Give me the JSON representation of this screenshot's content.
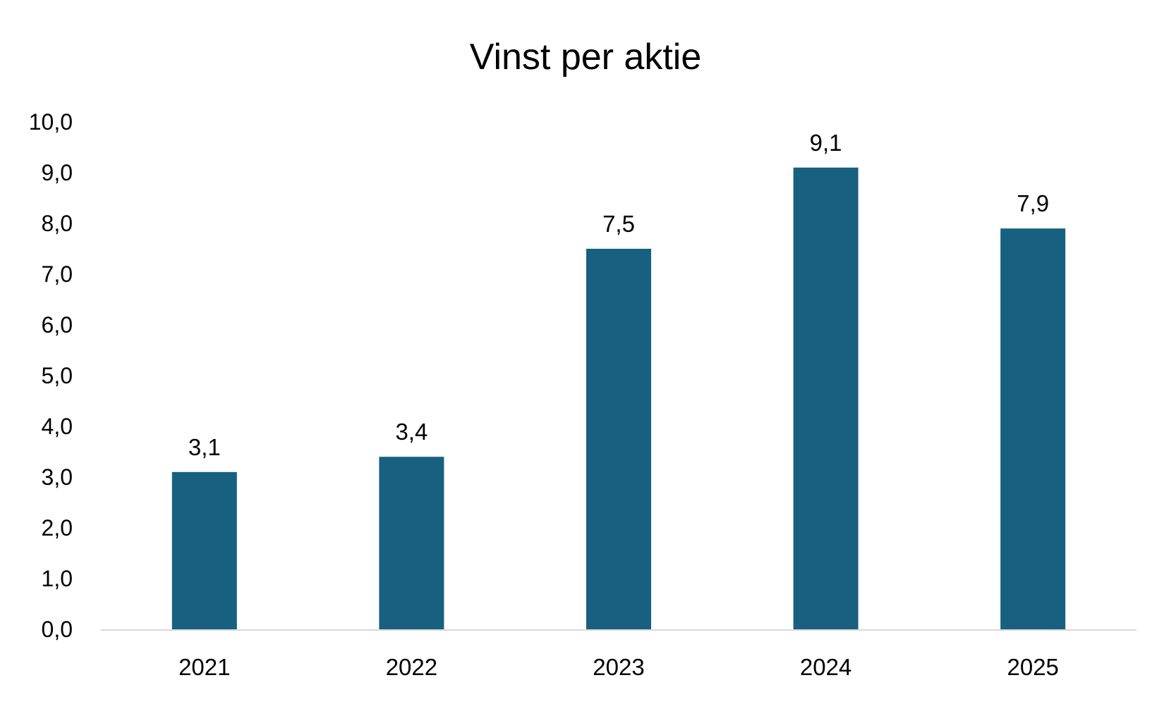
{
  "chart_data": {
    "type": "bar",
    "title": "Vinst per aktie",
    "xlabel": "",
    "ylabel": "",
    "categories": [
      "2021",
      "2022",
      "2023",
      "2024",
      "2025"
    ],
    "values": [
      3.1,
      3.4,
      7.5,
      9.1,
      7.9
    ],
    "value_labels": [
      "3,1",
      "3,4",
      "7,5",
      "9,1",
      "7,9"
    ],
    "ylim": [
      0,
      10
    ],
    "yticks": [
      "0,0",
      "1,0",
      "2,0",
      "3,0",
      "4,0",
      "5,0",
      "6,0",
      "7,0",
      "8,0",
      "9,0",
      "10,0"
    ],
    "grid": false,
    "legend": "none",
    "colors": {
      "bar": "#17607F",
      "axis": "#D9D9D9"
    }
  }
}
